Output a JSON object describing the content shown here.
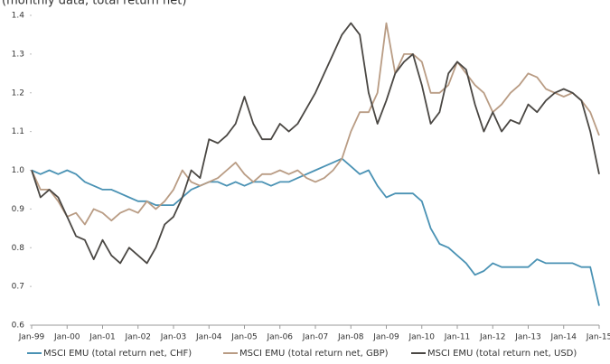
{
  "chart_data": {
    "type": "line",
    "subtitle": "(monthly data, total return net)",
    "categories": [
      "Jan-99",
      null,
      null,
      null,
      "Jan-00",
      null,
      null,
      null,
      "Jan-01",
      null,
      null,
      null,
      "Jan-02",
      null,
      null,
      null,
      "Jan-03",
      null,
      null,
      null,
      "Jan-04",
      null,
      null,
      null,
      "Jan-05",
      null,
      null,
      null,
      "Jan-06",
      null,
      null,
      null,
      "Jan-07",
      null,
      null,
      null,
      "Jan-08",
      null,
      null,
      null,
      "Jan-09",
      null,
      null,
      null,
      "Jan-10",
      null,
      null,
      null,
      "Jan-11",
      null,
      null,
      null,
      "Jan-12",
      null,
      null,
      null,
      "Jan-13",
      null,
      null,
      null,
      "Jan-14",
      null,
      null,
      null,
      "Jan-15"
    ],
    "series": [
      {
        "name": "MSCI EMU (total return net, CHF)",
        "color": "#4a92b4",
        "values": [
          1.0,
          0.99,
          1.0,
          0.99,
          1.0,
          0.99,
          0.97,
          0.96,
          0.95,
          0.95,
          0.94,
          0.93,
          0.92,
          0.92,
          0.91,
          0.91,
          0.91,
          0.93,
          0.95,
          0.96,
          0.97,
          0.97,
          0.96,
          0.97,
          0.96,
          0.97,
          0.97,
          0.96,
          0.97,
          0.97,
          0.98,
          0.99,
          1.0,
          1.01,
          1.02,
          1.03,
          1.01,
          0.99,
          1.0,
          0.96,
          0.93,
          0.94,
          0.94,
          0.94,
          0.92,
          0.85,
          0.81,
          0.8,
          0.78,
          0.76,
          0.73,
          0.74,
          0.76,
          0.75,
          0.75,
          0.75,
          0.75,
          0.77,
          0.76,
          0.76,
          0.76,
          0.76,
          0.75,
          0.75,
          0.65
        ]
      },
      {
        "name": "MSCI EMU (total return net, GBP)",
        "color": "#b99c84",
        "values": [
          1.0,
          0.95,
          0.95,
          0.92,
          0.88,
          0.89,
          0.86,
          0.9,
          0.89,
          0.87,
          0.89,
          0.9,
          0.89,
          0.92,
          0.9,
          0.92,
          0.95,
          1.0,
          0.97,
          0.96,
          0.97,
          0.98,
          1.0,
          1.02,
          0.99,
          0.97,
          0.99,
          0.99,
          1.0,
          0.99,
          1.0,
          0.98,
          0.97,
          0.98,
          1.0,
          1.03,
          1.1,
          1.15,
          1.15,
          1.2,
          1.38,
          1.25,
          1.3,
          1.3,
          1.28,
          1.2,
          1.2,
          1.22,
          1.28,
          1.25,
          1.22,
          1.2,
          1.15,
          1.17,
          1.2,
          1.22,
          1.25,
          1.24,
          1.21,
          1.2,
          1.19,
          1.2,
          1.18,
          1.15,
          1.09
        ]
      },
      {
        "name": "MSCI EMU (total return net, USD)",
        "color": "#4a4743",
        "values": [
          1.0,
          0.93,
          0.95,
          0.93,
          0.88,
          0.83,
          0.82,
          0.77,
          0.82,
          0.78,
          0.76,
          0.8,
          0.78,
          0.76,
          0.8,
          0.86,
          0.88,
          0.93,
          1.0,
          0.98,
          1.08,
          1.07,
          1.09,
          1.12,
          1.19,
          1.12,
          1.08,
          1.08,
          1.12,
          1.1,
          1.12,
          1.16,
          1.2,
          1.25,
          1.3,
          1.35,
          1.38,
          1.35,
          1.2,
          1.12,
          1.18,
          1.25,
          1.28,
          1.3,
          1.22,
          1.12,
          1.15,
          1.25,
          1.28,
          1.26,
          1.17,
          1.1,
          1.15,
          1.1,
          1.13,
          1.12,
          1.17,
          1.15,
          1.18,
          1.2,
          1.21,
          1.2,
          1.18,
          1.1,
          0.99
        ]
      }
    ],
    "ylim": [
      0.6,
      1.4
    ],
    "yticks": [
      0.6,
      0.7,
      0.8,
      0.9,
      {
        "value": 1,
        "label": "1.0"
      },
      1.1,
      1.2,
      1.3,
      1.4
    ],
    "grid": false
  }
}
